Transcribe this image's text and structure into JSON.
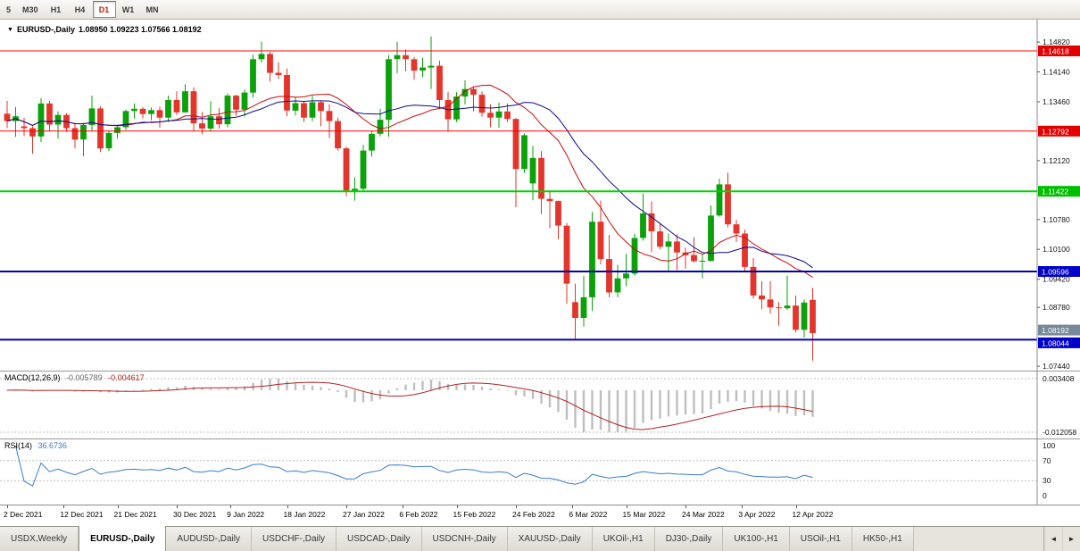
{
  "toolbar": {
    "timeframes": [
      {
        "label": "5",
        "active": false
      },
      {
        "label": "M30",
        "active": false
      },
      {
        "label": "H1",
        "active": false
      },
      {
        "label": "H4",
        "active": false
      },
      {
        "label": "D1",
        "active": true
      },
      {
        "label": "W1",
        "active": false
      },
      {
        "label": "MN",
        "active": false
      }
    ]
  },
  "chart_header": {
    "symbol": "EURUSD-,Daily",
    "ohlc": "1.08950 1.09223 1.07566 1.08192"
  },
  "chart_data": {
    "type": "candlestick",
    "title": "EURUSD-,Daily",
    "timeframe": "Daily",
    "last_candle": {
      "open": 1.0895,
      "high": 1.09223,
      "low": 1.07566,
      "close": 1.08192
    },
    "up_color": "#0AA10A",
    "down_color": "#E3352B",
    "price_scale": {
      "min": 1.0734,
      "max": 1.1533
    },
    "y_axis_ticks": [
      "1.14820",
      "1.14140",
      "1.13460",
      "1.12120",
      "1.10780",
      "1.10100",
      "1.09420",
      "1.08780",
      "1.07440"
    ],
    "levels": [
      {
        "price": 1.14618,
        "label": "1.14618",
        "color": "#FF0000",
        "width": 1,
        "badge": "#E00000"
      },
      {
        "price": 1.12792,
        "label": "1.12792",
        "color": "#FF0000",
        "width": 1,
        "badge": "#E00000"
      },
      {
        "price": 1.11422,
        "label": "1.11422",
        "color": "#00D200",
        "width": 2,
        "badge": "#00BE00"
      },
      {
        "price": 1.09596,
        "label": "1.09596",
        "color": "#0000B4",
        "width": 2,
        "badge": "#0000C8"
      },
      {
        "price": 1.08044,
        "label": "1.08044",
        "color": "#0000B4",
        "width": 2,
        "badge": "#0000C8"
      }
    ],
    "current_price": {
      "label": "1.08192",
      "badge": "#778899"
    },
    "moving_averages": [
      {
        "name": "ma-fast",
        "period": 13,
        "color": "#CC0A0A"
      },
      {
        "name": "ma-slow",
        "period": 20,
        "color": "#0B0B8F"
      }
    ],
    "x_labels": [
      {
        "text": "2 Dec 2021",
        "bar": 0
      },
      {
        "text": "12 Dec 2021",
        "bar": 6.67
      },
      {
        "text": "21 Dec 2021",
        "bar": 13
      },
      {
        "text": "30 Dec 2021",
        "bar": 20
      },
      {
        "text": "9 Jan 2022",
        "bar": 26.33
      },
      {
        "text": "18 Jan 2022",
        "bar": 33
      },
      {
        "text": "27 Jan 2022",
        "bar": 40
      },
      {
        "text": "6 Feb 2022",
        "bar": 46.67
      },
      {
        "text": "15 Feb 2022",
        "bar": 53
      },
      {
        "text": "24 Feb 2022",
        "bar": 60
      },
      {
        "text": "6 Mar 2022",
        "bar": 66.67
      },
      {
        "text": "15 Mar 2022",
        "bar": 73
      },
      {
        "text": "24 Mar 2022",
        "bar": 80
      },
      {
        "text": "3 Apr 2022",
        "bar": 86.67
      },
      {
        "text": "12 Apr 2022",
        "bar": 93
      }
    ],
    "candles": [
      [
        1.1319,
        1.1348,
        1.1286,
        1.1302
      ],
      [
        1.1302,
        1.1334,
        1.1266,
        1.1313
      ],
      [
        1.129,
        1.131,
        1.1268,
        1.1286
      ],
      [
        1.1286,
        1.129,
        1.1228,
        1.1267
      ],
      [
        1.1267,
        1.1354,
        1.1254,
        1.1342
      ],
      [
        1.1342,
        1.1348,
        1.128,
        1.1294
      ],
      [
        1.1294,
        1.1324,
        1.1262,
        1.1316
      ],
      [
        1.1316,
        1.132,
        1.1278,
        1.1286
      ],
      [
        1.1286,
        1.1298,
        1.124,
        1.126
      ],
      [
        1.126,
        1.1298,
        1.1222,
        1.1293
      ],
      [
        1.1293,
        1.136,
        1.128,
        1.1331
      ],
      [
        1.1331,
        1.1335,
        1.1232,
        1.124
      ],
      [
        1.124,
        1.128,
        1.1234,
        1.1275
      ],
      [
        1.1275,
        1.1294,
        1.1262,
        1.1288
      ],
      [
        1.1288,
        1.1328,
        1.1282,
        1.1325
      ],
      [
        1.1325,
        1.1342,
        1.1308,
        1.133
      ],
      [
        1.133,
        1.1334,
        1.1308,
        1.1318
      ],
      [
        1.1318,
        1.1333,
        1.1304,
        1.1327
      ],
      [
        1.1327,
        1.1335,
        1.1287,
        1.131
      ],
      [
        1.131,
        1.136,
        1.13,
        1.135
      ],
      [
        1.135,
        1.137,
        1.1316,
        1.1322
      ],
      [
        1.1322,
        1.1386,
        1.1321,
        1.137
      ],
      [
        1.137,
        1.1379,
        1.1279,
        1.1297
      ],
      [
        1.1297,
        1.1323,
        1.1272,
        1.1285
      ],
      [
        1.1285,
        1.1347,
        1.1278,
        1.1313
      ],
      [
        1.1313,
        1.1332,
        1.1285,
        1.1295
      ],
      [
        1.1295,
        1.1365,
        1.1288,
        1.136
      ],
      [
        1.136,
        1.1362,
        1.1314,
        1.1328
      ],
      [
        1.1328,
        1.1374,
        1.1313,
        1.1367
      ],
      [
        1.1367,
        1.1453,
        1.1356,
        1.1443
      ],
      [
        1.1443,
        1.1483,
        1.1435,
        1.1455
      ],
      [
        1.1455,
        1.146,
        1.1392,
        1.1412
      ],
      [
        1.1412,
        1.1436,
        1.1398,
        1.1407
      ],
      [
        1.1407,
        1.1422,
        1.1313,
        1.1326
      ],
      [
        1.1326,
        1.1358,
        1.1315,
        1.1343
      ],
      [
        1.1343,
        1.1346,
        1.13,
        1.131
      ],
      [
        1.131,
        1.136,
        1.1302,
        1.1345
      ],
      [
        1.1345,
        1.1349,
        1.129,
        1.1325
      ],
      [
        1.1325,
        1.134,
        1.1263,
        1.1302
      ],
      [
        1.1302,
        1.131,
        1.1235,
        1.124
      ],
      [
        1.124,
        1.1244,
        1.1131,
        1.1144
      ],
      [
        1.1144,
        1.1174,
        1.1121,
        1.1148
      ],
      [
        1.1148,
        1.1248,
        1.1141,
        1.1235
      ],
      [
        1.1235,
        1.128,
        1.1221,
        1.1273
      ],
      [
        1.1273,
        1.133,
        1.1267,
        1.1305
      ],
      [
        1.1305,
        1.1452,
        1.1266,
        1.1443
      ],
      [
        1.1443,
        1.1483,
        1.1411,
        1.1452
      ],
      [
        1.1452,
        1.1465,
        1.1415,
        1.1443
      ],
      [
        1.1443,
        1.1448,
        1.1396,
        1.1417
      ],
      [
        1.1417,
        1.1446,
        1.1402,
        1.1424
      ],
      [
        1.1424,
        1.1495,
        1.1375,
        1.1428
      ],
      [
        1.1428,
        1.144,
        1.133,
        1.135
      ],
      [
        1.135,
        1.1369,
        1.128,
        1.1306
      ],
      [
        1.1306,
        1.1368,
        1.13,
        1.1358
      ],
      [
        1.1358,
        1.1395,
        1.134,
        1.1375
      ],
      [
        1.1375,
        1.138,
        1.1324,
        1.1362
      ],
      [
        1.1362,
        1.137,
        1.1312,
        1.1321
      ],
      [
        1.1321,
        1.134,
        1.1288,
        1.131
      ],
      [
        1.131,
        1.1344,
        1.1287,
        1.1324
      ],
      [
        1.1324,
        1.1342,
        1.13,
        1.1307
      ],
      [
        1.1307,
        1.1309,
        1.1106,
        1.1193
      ],
      [
        1.1193,
        1.1274,
        1.1184,
        1.127
      ],
      [
        1.116,
        1.1246,
        1.1122,
        1.1218
      ],
      [
        1.1218,
        1.1234,
        1.109,
        1.1125
      ],
      [
        1.1125,
        1.1144,
        1.1058,
        1.112
      ],
      [
        1.112,
        1.1121,
        1.1033,
        1.1064
      ],
      [
        1.1064,
        1.107,
        1.0886,
        1.0932
      ],
      [
        1.089,
        1.0932,
        1.0806,
        1.0854
      ],
      [
        1.0854,
        1.095,
        1.0834,
        1.0901
      ],
      [
        1.0901,
        1.1095,
        1.087,
        1.1073
      ],
      [
        1.1073,
        1.1121,
        1.0976,
        1.0988
      ],
      [
        1.0988,
        1.1043,
        1.0901,
        1.0912
      ],
      [
        1.0912,
        1.0975,
        1.0901,
        1.0944
      ],
      [
        1.0944,
        1.1,
        1.0926,
        1.0955
      ],
      [
        1.0955,
        1.1046,
        1.095,
        1.1036
      ],
      [
        1.1036,
        1.1137,
        1.103,
        1.1092
      ],
      [
        1.1092,
        1.1119,
        1.1004,
        1.1051
      ],
      [
        1.1051,
        1.107,
        1.101,
        1.1016
      ],
      [
        1.1016,
        1.1046,
        1.0961,
        1.1028
      ],
      [
        1.1028,
        1.1044,
        1.0963,
        1.1003
      ],
      [
        1.1003,
        1.1014,
        1.0966,
        1.0997
      ],
      [
        1.0997,
        1.1038,
        1.098,
        1.0983
      ],
      [
        1.0983,
        1.1,
        1.0944,
        1.0984
      ],
      [
        1.0984,
        1.111,
        1.0982,
        1.1087
      ],
      [
        1.1087,
        1.1171,
        1.1084,
        1.1158
      ],
      [
        1.1158,
        1.1185,
        1.106,
        1.1067
      ],
      [
        1.1067,
        1.1077,
        1.1027,
        1.1046
      ],
      [
        1.1046,
        1.1055,
        1.096,
        1.097
      ],
      [
        1.097,
        1.099,
        1.0898,
        1.0905
      ],
      [
        1.0905,
        1.0938,
        1.0874,
        1.0896
      ],
      [
        1.0896,
        1.0938,
        1.0864,
        1.0878
      ],
      [
        1.0878,
        1.089,
        1.0836,
        1.0876
      ],
      [
        1.0876,
        1.095,
        1.0872,
        1.0882
      ],
      [
        1.0882,
        1.0905,
        1.0821,
        1.0827
      ],
      [
        1.0827,
        1.0896,
        1.0809,
        1.0889
      ],
      [
        1.0895,
        1.09223,
        1.07566,
        1.08192
      ]
    ],
    "indicators": {
      "macd": {
        "label": "MACD(12,26,9)",
        "value_main": "-0.005789",
        "value_signal": "-0.004617",
        "axis_max": "0.003408",
        "axis_min": "-0.012058",
        "fast_period": 12,
        "slow_period": 26,
        "signal_period": 9,
        "histogram_color": "#BEBEBE",
        "signal_color": "#B22222"
      },
      "rsi": {
        "label": "RSI(14)",
        "value": "36.6736",
        "period": 14,
        "axis_ticks": [
          "100",
          "70",
          "30",
          "0"
        ],
        "level_lines": [
          70,
          30
        ],
        "line_color": "#3A7BD5"
      }
    }
  },
  "tabs": {
    "items": [
      {
        "label": "USDX,Weekly",
        "active": false
      },
      {
        "label": "EURUSD-,Daily",
        "active": true
      },
      {
        "label": "AUDUSD-,Daily",
        "active": false
      },
      {
        "label": "USDCHF-,Daily",
        "active": false
      },
      {
        "label": "USDCAD-,Daily",
        "active": false
      },
      {
        "label": "USDCNH-,Daily",
        "active": false
      },
      {
        "label": "XAUUSD-,Daily",
        "active": false
      },
      {
        "label": "UKOil-,H1",
        "active": false
      },
      {
        "label": "DJ30-,Daily",
        "active": false
      },
      {
        "label": "UK100-,H1",
        "active": false
      },
      {
        "label": "USOil-,H1",
        "active": false
      },
      {
        "label": "HK50-,H1",
        "active": false
      }
    ],
    "scroll_left": "◄",
    "scroll_right": "►"
  }
}
